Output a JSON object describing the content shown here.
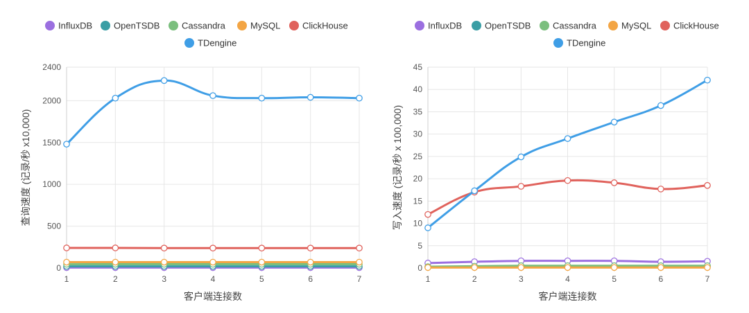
{
  "chart_data": [
    {
      "type": "line",
      "title": "",
      "xlabel": "客户端连接数",
      "ylabel": "查询速度 (记录/秒 x10,000)",
      "x": [
        1,
        2,
        3,
        4,
        5,
        6,
        7
      ],
      "ylim": [
        0,
        2400
      ],
      "yticks": [
        0,
        500,
        1000,
        1500,
        2000,
        2400
      ],
      "grid": true,
      "legend_position": "top",
      "series": [
        {
          "name": "InfluxDB",
          "color": "#9b6fe0",
          "values": [
            5,
            5,
            5,
            5,
            5,
            5,
            5
          ]
        },
        {
          "name": "OpenTSDB",
          "color": "#3a9ea5",
          "values": [
            20,
            20,
            20,
            20,
            20,
            20,
            20
          ]
        },
        {
          "name": "Cassandra",
          "color": "#7bbf7e",
          "values": [
            45,
            45,
            45,
            45,
            45,
            45,
            45
          ]
        },
        {
          "name": "MySQL",
          "color": "#f3a544",
          "values": [
            70,
            70,
            70,
            70,
            70,
            70,
            70
          ]
        },
        {
          "name": "ClickHouse",
          "color": "#e0625c",
          "values": [
            240,
            240,
            238,
            238,
            238,
            238,
            238
          ]
        },
        {
          "name": "TDengine",
          "color": "#3f9ee6",
          "values": [
            1480,
            2030,
            2240,
            2060,
            2030,
            2040,
            2030
          ]
        }
      ]
    },
    {
      "type": "line",
      "title": "",
      "xlabel": "客户端连接数",
      "ylabel": "写入速度 (记录/秒 x 100,000)",
      "x": [
        1,
        2,
        3,
        4,
        5,
        6,
        7
      ],
      "ylim": [
        0,
        45
      ],
      "yticks": [
        0,
        5,
        10,
        15,
        20,
        25,
        30,
        35,
        40,
        45
      ],
      "grid": true,
      "legend_position": "top",
      "series": [
        {
          "name": "InfluxDB",
          "color": "#9b6fe0",
          "values": [
            1.1,
            1.4,
            1.6,
            1.6,
            1.6,
            1.4,
            1.5
          ]
        },
        {
          "name": "OpenTSDB",
          "color": "#3a9ea5",
          "values": [
            0.2,
            0.3,
            0.4,
            0.4,
            0.4,
            0.4,
            0.4
          ]
        },
        {
          "name": "Cassandra",
          "color": "#7bbf7e",
          "values": [
            0.3,
            0.4,
            0.5,
            0.5,
            0.5,
            0.5,
            0.5
          ]
        },
        {
          "name": "MySQL",
          "color": "#f3a544",
          "values": [
            0.1,
            0.1,
            0.1,
            0.1,
            0.1,
            0.1,
            0.1
          ]
        },
        {
          "name": "ClickHouse",
          "color": "#e0625c",
          "values": [
            12.0,
            17.0,
            18.3,
            19.6,
            19.1,
            17.7,
            18.5
          ]
        },
        {
          "name": "TDengine",
          "color": "#3f9ee6",
          "values": [
            9.0,
            17.3,
            24.9,
            29.0,
            32.7,
            36.4,
            42.1
          ]
        }
      ]
    }
  ]
}
